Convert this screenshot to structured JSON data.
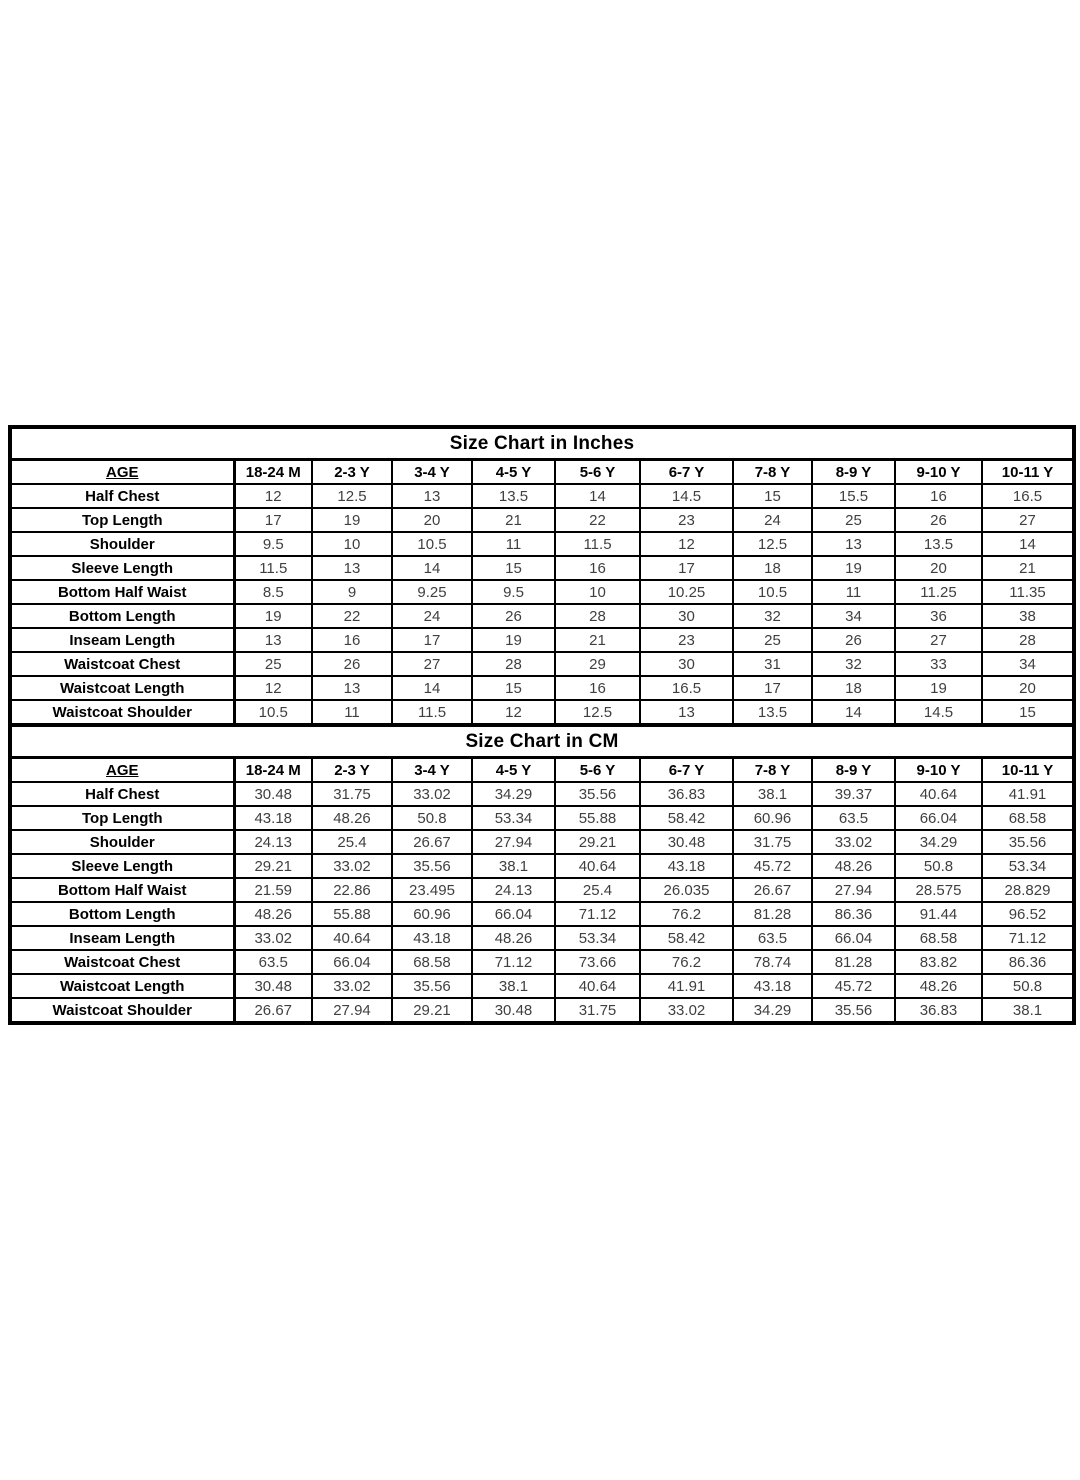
{
  "colors": {
    "background": "#ffffff",
    "border": "#000000",
    "label_text": "#000000",
    "value_text": "#3f3f3f"
  },
  "tables": [
    {
      "title": "Size Chart in Inches",
      "age_header": "AGE",
      "columns": [
        "18-24 M",
        "2-3 Y",
        "3-4 Y",
        "4-5 Y",
        "5-6 Y",
        "6-7 Y",
        "7-8 Y",
        "8-9 Y",
        "9-10 Y",
        "10-11 Y"
      ],
      "rows": [
        {
          "label": "Half Chest",
          "values": [
            "12",
            "12.5",
            "13",
            "13.5",
            "14",
            "14.5",
            "15",
            "15.5",
            "16",
            "16.5"
          ]
        },
        {
          "label": "Top Length",
          "values": [
            "17",
            "19",
            "20",
            "21",
            "22",
            "23",
            "24",
            "25",
            "26",
            "27"
          ]
        },
        {
          "label": "Shoulder",
          "values": [
            "9.5",
            "10",
            "10.5",
            "11",
            "11.5",
            "12",
            "12.5",
            "13",
            "13.5",
            "14"
          ]
        },
        {
          "label": "Sleeve Length",
          "values": [
            "11.5",
            "13",
            "14",
            "15",
            "16",
            "17",
            "18",
            "19",
            "20",
            "21"
          ]
        },
        {
          "label": "Bottom Half Waist",
          "values": [
            "8.5",
            "9",
            "9.25",
            "9.5",
            "10",
            "10.25",
            "10.5",
            "11",
            "11.25",
            "11.35"
          ]
        },
        {
          "label": "Bottom Length",
          "values": [
            "19",
            "22",
            "24",
            "26",
            "28",
            "30",
            "32",
            "34",
            "36",
            "38"
          ]
        },
        {
          "label": "Inseam Length",
          "values": [
            "13",
            "16",
            "17",
            "19",
            "21",
            "23",
            "25",
            "26",
            "27",
            "28"
          ]
        },
        {
          "label": "Waistcoat Chest",
          "values": [
            "25",
            "26",
            "27",
            "28",
            "29",
            "30",
            "31",
            "32",
            "33",
            "34"
          ]
        },
        {
          "label": "Waistcoat Length",
          "values": [
            "12",
            "13",
            "14",
            "15",
            "16",
            "16.5",
            "17",
            "18",
            "19",
            "20"
          ]
        },
        {
          "label": "Waistcoat Shoulder",
          "values": [
            "10.5",
            "11",
            "11.5",
            "12",
            "12.5",
            "13",
            "13.5",
            "14",
            "14.5",
            "15"
          ]
        }
      ]
    },
    {
      "title": "Size Chart in CM",
      "age_header": "AGE",
      "columns": [
        "18-24 M",
        "2-3 Y",
        "3-4 Y",
        "4-5 Y",
        "5-6 Y",
        "6-7 Y",
        "7-8 Y",
        "8-9 Y",
        "9-10 Y",
        "10-11 Y"
      ],
      "rows": [
        {
          "label": "Half Chest",
          "values": [
            "30.48",
            "31.75",
            "33.02",
            "34.29",
            "35.56",
            "36.83",
            "38.1",
            "39.37",
            "40.64",
            "41.91"
          ]
        },
        {
          "label": "Top Length",
          "values": [
            "43.18",
            "48.26",
            "50.8",
            "53.34",
            "55.88",
            "58.42",
            "60.96",
            "63.5",
            "66.04",
            "68.58"
          ]
        },
        {
          "label": "Shoulder",
          "values": [
            "24.13",
            "25.4",
            "26.67",
            "27.94",
            "29.21",
            "30.48",
            "31.75",
            "33.02",
            "34.29",
            "35.56"
          ]
        },
        {
          "label": "Sleeve Length",
          "values": [
            "29.21",
            "33.02",
            "35.56",
            "38.1",
            "40.64",
            "43.18",
            "45.72",
            "48.26",
            "50.8",
            "53.34"
          ]
        },
        {
          "label": "Bottom Half Waist",
          "values": [
            "21.59",
            "22.86",
            "23.495",
            "24.13",
            "25.4",
            "26.035",
            "26.67",
            "27.94",
            "28.575",
            "28.829"
          ]
        },
        {
          "label": "Bottom Length",
          "values": [
            "48.26",
            "55.88",
            "60.96",
            "66.04",
            "71.12",
            "76.2",
            "81.28",
            "86.36",
            "91.44",
            "96.52"
          ]
        },
        {
          "label": "Inseam Length",
          "values": [
            "33.02",
            "40.64",
            "43.18",
            "48.26",
            "53.34",
            "58.42",
            "63.5",
            "66.04",
            "68.58",
            "71.12"
          ]
        },
        {
          "label": "Waistcoat Chest",
          "values": [
            "63.5",
            "66.04",
            "68.58",
            "71.12",
            "73.66",
            "76.2",
            "78.74",
            "81.28",
            "83.82",
            "86.36"
          ]
        },
        {
          "label": "Waistcoat Length",
          "values": [
            "30.48",
            "33.02",
            "35.56",
            "38.1",
            "40.64",
            "41.91",
            "43.18",
            "45.72",
            "48.26",
            "50.8"
          ]
        },
        {
          "label": "Waistcoat Shoulder",
          "values": [
            "26.67",
            "27.94",
            "29.21",
            "30.48",
            "31.75",
            "33.02",
            "34.29",
            "35.56",
            "36.83",
            "38.1"
          ]
        }
      ]
    }
  ]
}
